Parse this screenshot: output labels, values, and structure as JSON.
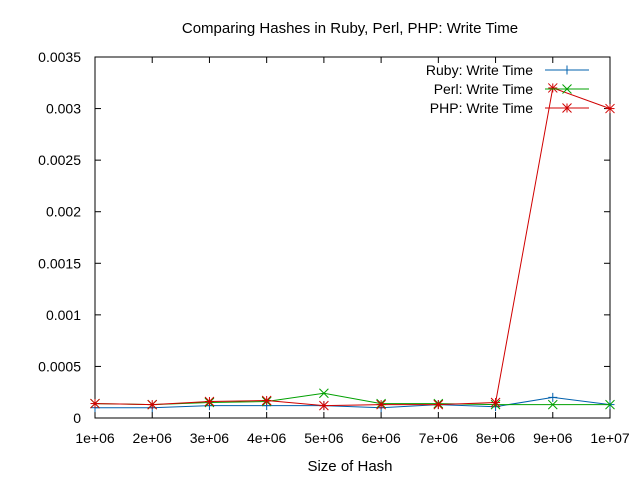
{
  "chart_data": {
    "type": "line",
    "title": "Comparing Hashes in Ruby, Perl, PHP: Write Time",
    "xlabel": "Size of Hash",
    "ylabel": "",
    "xlim": [
      1000000,
      10000000
    ],
    "ylim": [
      0,
      0.0035
    ],
    "x_ticks": [
      1000000,
      2000000,
      3000000,
      4000000,
      5000000,
      6000000,
      7000000,
      8000000,
      9000000,
      10000000
    ],
    "x_tick_labels": [
      "1e+06",
      "2e+06",
      "3e+06",
      "4e+06",
      "5e+06",
      "6e+06",
      "7e+06",
      "8e+06",
      "9e+06",
      "1e+07"
    ],
    "y_ticks": [
      0,
      0.0005,
      0.001,
      0.0015,
      0.002,
      0.0025,
      0.003,
      0.0035
    ],
    "y_tick_labels": [
      "0",
      "0.0005",
      "0.001",
      "0.0015",
      "0.002",
      "0.0025",
      "0.003",
      "0.0035"
    ],
    "grid": false,
    "legend_position": "top-right",
    "x": [
      1000000,
      2000000,
      3000000,
      4000000,
      5000000,
      6000000,
      7000000,
      8000000,
      9000000,
      10000000
    ],
    "series": [
      {
        "name": "Ruby: Write Time",
        "color": "#0060ad",
        "marker": "plus",
        "values": [
          0.0001,
          0.0001,
          0.00012,
          0.00012,
          0.00012,
          0.0001,
          0.00013,
          0.00011,
          0.0002,
          0.00013
        ]
      },
      {
        "name": "Perl: Write Time",
        "color": "#00a000",
        "marker": "cross",
        "values": [
          0.00014,
          0.00013,
          0.00015,
          0.00016,
          0.00024,
          0.00014,
          0.00014,
          0.00013,
          0.00013,
          0.00013
        ]
      },
      {
        "name": "PHP: Write Time",
        "color": "#d00000",
        "marker": "star",
        "values": [
          0.00014,
          0.00013,
          0.00016,
          0.00017,
          0.00012,
          0.00013,
          0.00013,
          0.00015,
          0.0032,
          0.003
        ]
      }
    ]
  }
}
